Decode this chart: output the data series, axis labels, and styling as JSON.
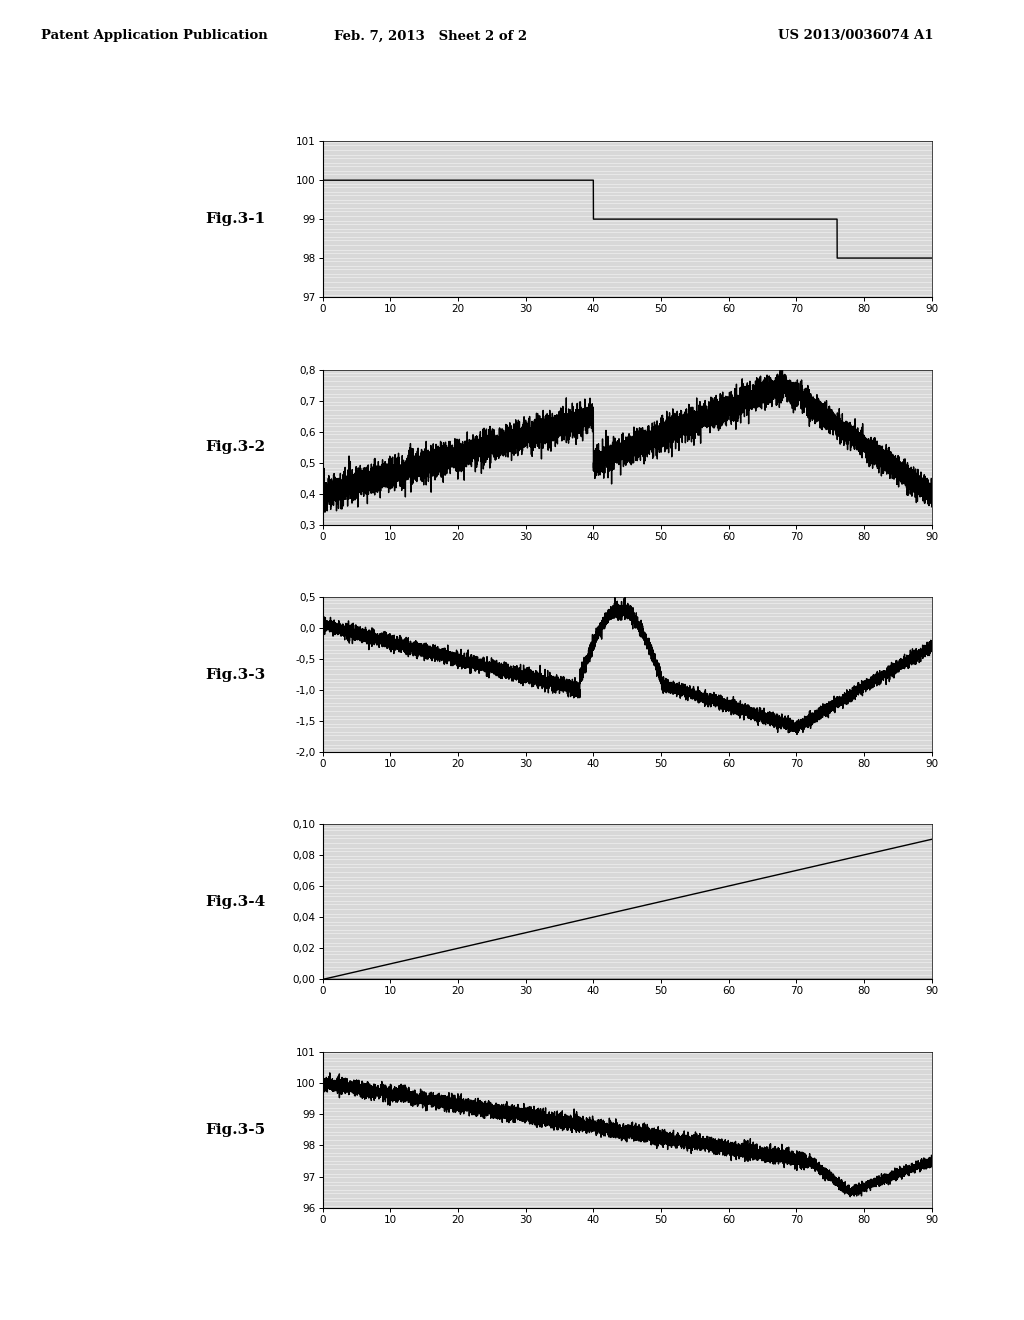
{
  "header_left": "Patent Application Publication",
  "header_mid": "Feb. 7, 2013   Sheet 2 of 2",
  "header_right": "US 2013/0036074 A1",
  "fig_labels": [
    "Fig.3-1",
    "Fig.3-2",
    "Fig.3-3",
    "Fig.3-4",
    "Fig.3-5"
  ],
  "background_color": "#ffffff",
  "page_bg": "#d8d8d8",
  "fig31": {
    "ylim": [
      97,
      101
    ],
    "yticks": [
      97,
      98,
      99,
      100,
      101
    ],
    "xlim": [
      0,
      90
    ],
    "xticks": [
      0,
      10,
      20,
      30,
      40,
      50,
      60,
      70,
      80,
      90
    ]
  },
  "fig32": {
    "ylim": [
      0.3,
      0.8
    ],
    "yticks": [
      0.3,
      0.4,
      0.5,
      0.6,
      0.7,
      0.8
    ],
    "xlim": [
      0,
      90
    ],
    "xticks": [
      0,
      10,
      20,
      30,
      40,
      50,
      60,
      70,
      80,
      90
    ]
  },
  "fig33": {
    "ylim": [
      -2.0,
      0.5
    ],
    "yticks": [
      -2.0,
      -1.5,
      -1.0,
      -0.5,
      0.0,
      0.5
    ],
    "xlim": [
      0,
      90
    ],
    "xticks": [
      0,
      10,
      20,
      30,
      40,
      50,
      60,
      70,
      80,
      90
    ]
  },
  "fig34": {
    "ylim": [
      0.0,
      0.1
    ],
    "yticks": [
      0.0,
      0.02,
      0.04,
      0.06,
      0.08,
      0.1
    ],
    "xlim": [
      0,
      90
    ],
    "xticks": [
      0,
      10,
      20,
      30,
      40,
      50,
      60,
      70,
      80,
      90
    ]
  },
  "fig35": {
    "ylim": [
      96,
      101
    ],
    "yticks": [
      96,
      97,
      98,
      99,
      100,
      101
    ],
    "xlim": [
      0,
      90
    ],
    "xticks": [
      0,
      10,
      20,
      30,
      40,
      50,
      60,
      70,
      80,
      90
    ]
  }
}
